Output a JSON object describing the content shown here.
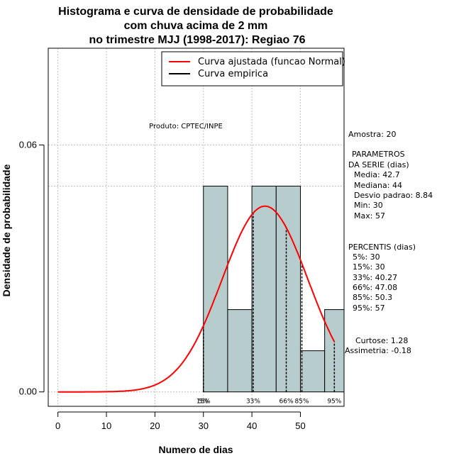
{
  "chart_data": {
    "type": "bar",
    "title_lines": [
      "Histograma e curva de densidade de probabilidade",
      "com chuva acima de 2 mm",
      "no trimestre MJJ (1998-2017): Regiao 76"
    ],
    "xlabel": "Numero de dias",
    "ylabel": "Densidade de probabilidade",
    "xlim": [
      -2,
      59
    ],
    "ylim": [
      -0.0035,
      0.0835
    ],
    "x_ticks": [
      0,
      10,
      20,
      30,
      40,
      50
    ],
    "y_ticks": [
      0.0,
      0.06
    ],
    "y_tick_labels": [
      "0.00",
      "0.06"
    ],
    "x_grid": [
      0,
      10,
      20,
      30,
      40,
      50
    ],
    "y_grid": [
      0.0,
      0.06
    ],
    "reference_hline": 0.05,
    "bins": [
      {
        "from": 30,
        "to": 35,
        "density": 0.05
      },
      {
        "from": 35,
        "to": 40,
        "density": 0.02
      },
      {
        "from": 40,
        "to": 45,
        "density": 0.05
      },
      {
        "from": 45,
        "to": 50,
        "density": 0.05
      },
      {
        "from": 50,
        "to": 55,
        "density": 0.01
      },
      {
        "from": 55,
        "to": 60,
        "density": 0.02
      }
    ],
    "normal_fit": {
      "mean": 42.7,
      "sd": 8.84,
      "x_from": 0,
      "x_to": 57,
      "color": "#ff0000"
    },
    "bar_color": "#b7cccc",
    "percentile_lines": [
      {
        "x": 30,
        "label": "5%"
      },
      {
        "x": 30,
        "label": "15%"
      },
      {
        "x": 40.27,
        "label": "33%"
      },
      {
        "x": 47.08,
        "label": "66%"
      },
      {
        "x": 50.3,
        "label": "85%"
      },
      {
        "x": 57,
        "label": "95%"
      }
    ],
    "legend": {
      "position": "top-right",
      "entries": [
        {
          "label": "Curva ajustada (funcao Normal)",
          "color": "#ff0000"
        },
        {
          "label": "Curva empirica",
          "color": "#000000"
        }
      ]
    },
    "annotation": "Produto: CPTEC/INPE",
    "stats_lines": [
      "Amostra: 20",
      "PARAMETROS",
      "DA SERIE (dias)",
      "Media: 42.7",
      "Mediana: 44",
      "Desvio padrao: 8.84",
      "Min: 30",
      "Max: 57",
      "PERCENTIS (dias)",
      "5%: 30",
      "15%: 30",
      "33%: 40.27",
      "66%: 47.08",
      "85%: 50.3",
      "95%: 57",
      "Curtose: 1.28",
      "Assimetria: -0.18"
    ]
  }
}
